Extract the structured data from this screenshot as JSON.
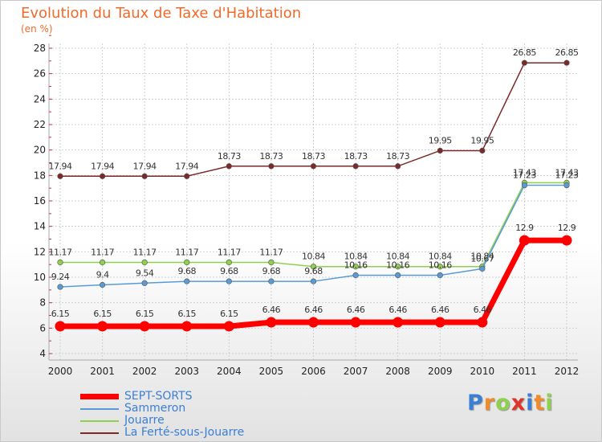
{
  "title": "Evolution du Taux de Taxe d'Habitation",
  "subtitle": "(en %)",
  "logo": {
    "text": "Proxiti"
  },
  "chart_data": {
    "type": "line",
    "x": [
      "2000",
      "2001",
      "2002",
      "2003",
      "2004",
      "2005",
      "2006",
      "2007",
      "2008",
      "2009",
      "2010",
      "2011",
      "2012"
    ],
    "ylim": [
      4,
      28
    ],
    "yticks": [
      4,
      6,
      8,
      10,
      12,
      14,
      16,
      18,
      20,
      22,
      24,
      26,
      28
    ],
    "grid": true,
    "legend_position": "bottom-left",
    "series": [
      {
        "name": "SEPT-SORTS",
        "color": "#ff0000",
        "values": [
          6.15,
          6.15,
          6.15,
          6.15,
          6.15,
          6.46,
          6.46,
          6.46,
          6.46,
          6.46,
          6.46,
          12.9,
          12.9
        ],
        "labels": [
          "6.15",
          "6.15",
          "6.15",
          "6.15",
          "6.15",
          "6.46",
          "6.46",
          "6.46",
          "6.46",
          "6.46",
          "6.46",
          "12.9",
          "12.9"
        ]
      },
      {
        "name": "Sammeron",
        "color": "#5b9bd5",
        "values": [
          9.24,
          9.4,
          9.54,
          9.68,
          9.68,
          9.68,
          9.68,
          10.16,
          10.16,
          10.16,
          10.67,
          17.23,
          17.23
        ],
        "labels": [
          "9.24",
          "9.4",
          "9.54",
          "9.68",
          "9.68",
          "9.68",
          "9.68",
          "10.16",
          "10.16",
          "10.16",
          "10.67",
          "17.23",
          "17.23"
        ]
      },
      {
        "name": "Jouarre",
        "color": "#8fd14f",
        "values": [
          11.17,
          11.17,
          11.17,
          11.17,
          11.17,
          11.17,
          10.84,
          10.84,
          10.84,
          10.84,
          10.84,
          17.43,
          17.43
        ],
        "labels": [
          "11.17",
          "11.17",
          "11.17",
          "11.17",
          "11.17",
          "11.17",
          "10.84",
          "10.84",
          "10.84",
          "10.84",
          "10.84",
          "17.43",
          "17.43"
        ]
      },
      {
        "name": "La Ferté-sous-Jouarre",
        "color": "#7a2a2a",
        "values": [
          17.94,
          17.94,
          17.94,
          17.94,
          18.73,
          18.73,
          18.73,
          18.73,
          18.73,
          19.95,
          19.95,
          26.85,
          26.85
        ],
        "labels": [
          "17.94",
          "17.94",
          "17.94",
          "17.94",
          "18.73",
          "18.73",
          "18.73",
          "18.73",
          "18.73",
          "19.95",
          "19.95",
          "26.85",
          "26.85"
        ]
      }
    ]
  }
}
